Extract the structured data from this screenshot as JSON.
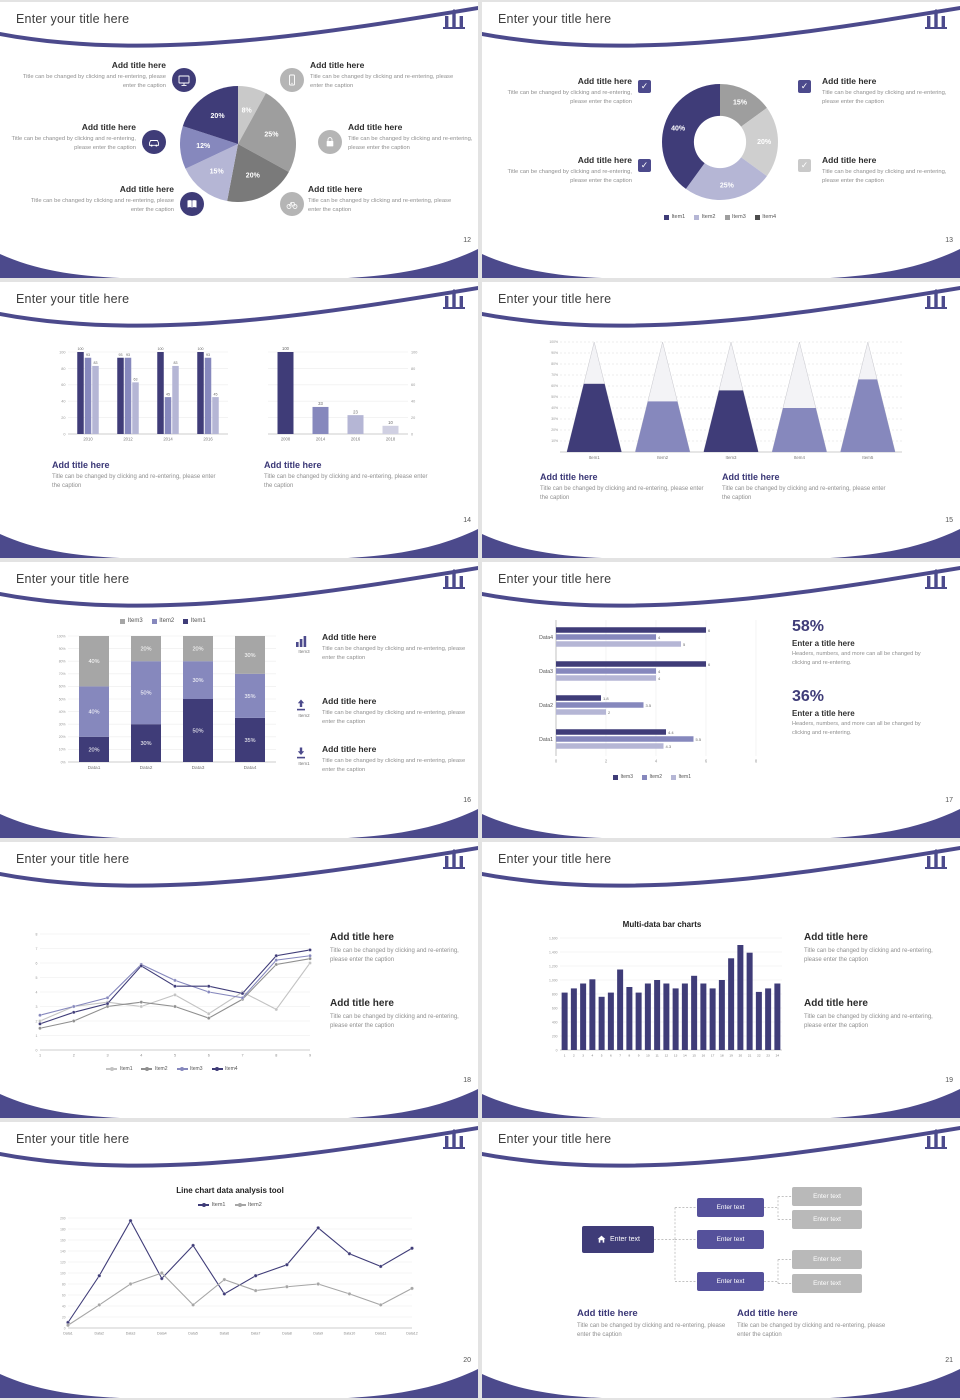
{
  "common": {
    "slide_title": "Enter your title here",
    "add_title": "Add title here",
    "caption": "Title can be changed by clicking and re-entering, please enter the caption",
    "enter_text": "Enter text",
    "enter_a_title": "Enter a title here",
    "stat_caption": "Headers, numbers, and more can all be changed by clicking and re-entering."
  },
  "pages": {
    "p12": "12",
    "p13": "13",
    "p14": "14",
    "p15": "15",
    "p16": "16",
    "p17": "17",
    "p18": "18",
    "p19": "19",
    "p20": "20",
    "p21": "21"
  },
  "slide16_items": {
    "item3": "Item3",
    "item2": "Item2",
    "item1": "Item1"
  },
  "stats17": {
    "v1": "58%",
    "v2": "36%"
  },
  "colors": {
    "primary": "#3f3c78",
    "mid": "#8688bd",
    "light": "#b5b6d5",
    "accent": "#4c4a8c",
    "gray": "#9e9e9e"
  },
  "chart_data": [
    {
      "id": "pie12",
      "type": "pie",
      "slide": 12,
      "slices": [
        {
          "label": "8%",
          "value": 8,
          "color": "#c9c9c9"
        },
        {
          "label": "25%",
          "value": 25,
          "color": "#9e9e9e"
        },
        {
          "label": "20%",
          "value": 20,
          "color": "#7a7a7a"
        },
        {
          "label": "15%",
          "value": 15,
          "color": "#b5b6d5"
        },
        {
          "label": "12%",
          "value": 12,
          "color": "#8688bd"
        },
        {
          "label": "20%",
          "value": 20,
          "color": "#3f3c78"
        }
      ]
    },
    {
      "id": "donut13",
      "type": "donut",
      "slide": 13,
      "slices": [
        {
          "label": "15%",
          "value": 15,
          "color": "#9e9e9e"
        },
        {
          "label": "20%",
          "value": 20,
          "color": "#cfcfcf"
        },
        {
          "label": "25%",
          "value": 25,
          "color": "#b5b6d5"
        },
        {
          "label": "40%",
          "value": 40,
          "color": "#3f3c78"
        }
      ],
      "legend": [
        "Item1",
        "Item2",
        "Item3",
        "Item4"
      ],
      "legend_colors": [
        "#3f3c78",
        "#b5b6d5",
        "#9e9e9e",
        "#4d4d4d"
      ]
    },
    {
      "id": "bars14a",
      "type": "bar",
      "slide": 14,
      "categories": [
        "2010",
        "2012",
        "2014",
        "2016"
      ],
      "ymax": 100,
      "series": [
        {
          "name": "Series1",
          "color": "#3f3c78",
          "values": [
            100,
            93,
            100,
            100
          ]
        },
        {
          "name": "Series2",
          "color": "#8688bd",
          "values": [
            93,
            93,
            45,
            93
          ]
        },
        {
          "name": "Series3",
          "color": "#b5b6d5",
          "values": [
            83,
            63,
            83,
            45
          ]
        }
      ]
    },
    {
      "id": "bars14b",
      "type": "bar",
      "slide": 14,
      "categories": [
        "2008",
        "2014",
        "2016",
        "2018"
      ],
      "ymax": 100,
      "series": [
        {
          "name": "Series1",
          "colors": [
            "#3f3c78",
            "#8688bd",
            "#b5b6d5",
            "#d0d0e2"
          ],
          "values": [
            100,
            33,
            23,
            10
          ]
        }
      ]
    },
    {
      "id": "cones15",
      "type": "cone",
      "slide": 15,
      "categories": [
        "Item1",
        "Item2",
        "Item3",
        "Item4",
        "Item5"
      ],
      "values": [
        62,
        46,
        56,
        40,
        66
      ],
      "colors": [
        "#3f3c78",
        "#8688bd",
        "#3f3c78",
        "#8688bd",
        "#8688bd"
      ],
      "ymax": 100
    },
    {
      "id": "stack16",
      "type": "stacked",
      "slide": 16,
      "categories": [
        "Data1",
        "Data2",
        "Data3",
        "Data4"
      ],
      "ymax": 100,
      "series": [
        {
          "name": "Item1",
          "color": "#3f3c78",
          "values": [
            20,
            30,
            50,
            35
          ]
        },
        {
          "name": "Item2",
          "color": "#8688bd",
          "values": [
            40,
            50,
            30,
            35
          ]
        },
        {
          "name": "Item3",
          "color": "#a6a6a6",
          "values": [
            40,
            20,
            20,
            30
          ]
        }
      ],
      "legend": [
        "Item3",
        "Item2",
        "Item1"
      ],
      "legend_colors": [
        "#a6a6a6",
        "#8688bd",
        "#3f3c78"
      ]
    },
    {
      "id": "hbar17",
      "type": "hbar",
      "slide": 17,
      "categories": [
        "Data4",
        "Data3",
        "Data2",
        "Data1"
      ],
      "xmax": 8,
      "xticks": [
        0,
        2,
        4,
        6,
        8
      ],
      "series": [
        {
          "name": "Item3",
          "color": "#3f3c78",
          "values": [
            6,
            6,
            1.8,
            4.4
          ]
        },
        {
          "name": "Item2",
          "color": "#8688bd",
          "values": [
            4,
            4,
            3.5,
            5.5
          ]
        },
        {
          "name": "Item1",
          "color": "#b5b6d5",
          "values": [
            5,
            4,
            2,
            4.3
          ]
        }
      ],
      "legend": [
        "Item3",
        "Item2",
        "Item1"
      ],
      "legend_colors": [
        "#3f3c78",
        "#8688bd",
        "#b5b6d5"
      ]
    },
    {
      "id": "line18",
      "type": "line",
      "slide": 18,
      "x": [
        "1",
        "2",
        "3",
        "4",
        "5",
        "6",
        "7",
        "8",
        "9"
      ],
      "ymax": 8,
      "series": [
        {
          "name": "Item1",
          "color": "#c3c3c3",
          "values": [
            2,
            3,
            3.3,
            3,
            3.8,
            2.5,
            4,
            2.8,
            6
          ]
        },
        {
          "name": "Item2",
          "color": "#8f8f8f",
          "values": [
            1.5,
            2,
            3,
            3.3,
            3,
            2.2,
            3.5,
            5.9,
            6.3
          ]
        },
        {
          "name": "Item3",
          "color": "#8688bd",
          "values": [
            2.4,
            3,
            3.6,
            5.9,
            4.8,
            4,
            3.6,
            6.2,
            6.5
          ]
        },
        {
          "name": "Item4",
          "color": "#3f3c78",
          "values": [
            1.8,
            2.6,
            3.2,
            5.8,
            4.4,
            4.4,
            3.9,
            6.5,
            6.9
          ]
        }
      ],
      "legend": [
        "Item1",
        "Item2",
        "Item3",
        "Item4"
      ],
      "legend_colors": [
        "#c3c3c3",
        "#8f8f8f",
        "#8688bd",
        "#3f3c78"
      ]
    },
    {
      "id": "bars19",
      "type": "bar",
      "slide": 19,
      "title": "Multi-data bar charts",
      "ymax": 1600,
      "categories": [
        "1",
        "2",
        "3",
        "4",
        "5",
        "6",
        "7",
        "8",
        "9",
        "10",
        "11",
        "12",
        "13",
        "14",
        "15",
        "16",
        "17",
        "18",
        "19",
        "20",
        "21",
        "22",
        "23",
        "24"
      ],
      "series": [
        {
          "name": "Data",
          "color": "#3f3c78",
          "values": [
            820,
            880,
            950,
            1010,
            760,
            820,
            1150,
            900,
            820,
            950,
            1000,
            950,
            880,
            950,
            1060,
            950,
            880,
            1000,
            1310,
            1500,
            1390,
            830,
            880,
            950
          ]
        }
      ]
    },
    {
      "id": "line20",
      "type": "line",
      "slide": 20,
      "title": "Line chart data analysis tool",
      "ymax": 200,
      "x": [
        "Data1",
        "Data2",
        "Data3",
        "Data4",
        "Data5",
        "Data6",
        "Data7",
        "Data8",
        "Data9",
        "Data10",
        "Data11",
        "Data12"
      ],
      "series": [
        {
          "name": "Item1",
          "color": "#3f3c78",
          "values": [
            10,
            95,
            195,
            90,
            150,
            62,
            95,
            115,
            182,
            135,
            112,
            145
          ]
        },
        {
          "name": "Item2",
          "color": "#a6a6a6",
          "values": [
            5,
            42,
            80,
            100,
            42,
            88,
            68,
            75,
            80,
            62,
            42,
            72
          ]
        }
      ],
      "legend": [
        "Item1",
        "Item2"
      ],
      "legend_colors": [
        "#3f3c78",
        "#a6a6a6"
      ]
    }
  ]
}
